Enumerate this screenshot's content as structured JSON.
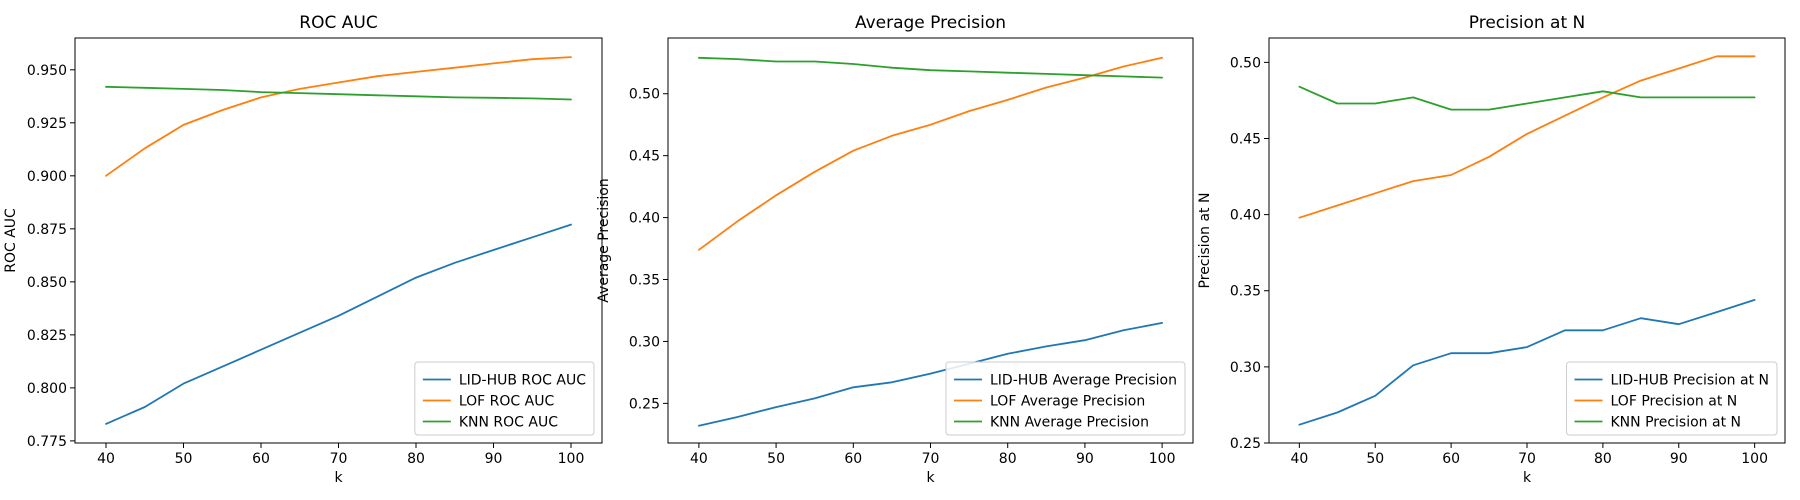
{
  "chart_data": [
    {
      "type": "line",
      "title": "ROC AUC",
      "xlabel": "k",
      "ylabel": "ROC AUC",
      "xlim": [
        36,
        104
      ],
      "ylim": [
        0.774,
        0.965
      ],
      "xticks": [
        40,
        50,
        60,
        70,
        80,
        90,
        100
      ],
      "yticks": [
        0.775,
        0.8,
        0.825,
        0.85,
        0.875,
        0.9,
        0.925,
        0.95
      ],
      "ytick_labels": [
        "0.775",
        "0.800",
        "0.825",
        "0.850",
        "0.875",
        "0.900",
        "0.925",
        "0.950"
      ],
      "x": [
        40,
        45,
        50,
        55,
        60,
        65,
        70,
        75,
        80,
        85,
        90,
        95,
        100
      ],
      "legend_position": "lower-right",
      "grid": false,
      "series": [
        {
          "name": "LID-HUB ROC AUC",
          "color": "#1f77b4",
          "values": [
            0.783,
            0.791,
            0.802,
            0.81,
            0.818,
            0.826,
            0.834,
            0.843,
            0.852,
            0.859,
            0.865,
            0.871,
            0.877
          ]
        },
        {
          "name": "LOF ROC AUC",
          "color": "#ff7f0e",
          "values": [
            0.9,
            0.913,
            0.924,
            0.931,
            0.937,
            0.941,
            0.944,
            0.947,
            0.949,
            0.951,
            0.953,
            0.955,
            0.956
          ]
        },
        {
          "name": "KNN ROC AUC",
          "color": "#2ca02c",
          "values": [
            0.942,
            0.9415,
            0.941,
            0.9405,
            0.9395,
            0.939,
            0.9385,
            0.938,
            0.9375,
            0.937,
            0.9368,
            0.9365,
            0.936
          ]
        }
      ]
    },
    {
      "type": "line",
      "title": "Average Precision",
      "xlabel": "k",
      "ylabel": "Average Precision",
      "xlim": [
        36,
        104
      ],
      "ylim": [
        0.218,
        0.545
      ],
      "xticks": [
        40,
        50,
        60,
        70,
        80,
        90,
        100
      ],
      "yticks": [
        0.25,
        0.3,
        0.35,
        0.4,
        0.45,
        0.5
      ],
      "ytick_labels": [
        "0.25",
        "0.30",
        "0.35",
        "0.40",
        "0.45",
        "0.50"
      ],
      "x": [
        40,
        45,
        50,
        55,
        60,
        65,
        70,
        75,
        80,
        85,
        90,
        95,
        100
      ],
      "legend_position": "lower-right",
      "grid": false,
      "series": [
        {
          "name": "LID-HUB Average Precision",
          "color": "#1f77b4",
          "values": [
            0.232,
            0.239,
            0.247,
            0.254,
            0.263,
            0.267,
            0.274,
            0.282,
            0.29,
            0.296,
            0.301,
            0.309,
            0.315
          ]
        },
        {
          "name": "LOF Average Precision",
          "color": "#ff7f0e",
          "values": [
            0.374,
            0.397,
            0.418,
            0.437,
            0.454,
            0.466,
            0.475,
            0.486,
            0.495,
            0.505,
            0.513,
            0.522,
            0.529
          ]
        },
        {
          "name": "KNN Average Precision",
          "color": "#2ca02c",
          "values": [
            0.529,
            0.528,
            0.526,
            0.526,
            0.524,
            0.521,
            0.519,
            0.518,
            0.517,
            0.516,
            0.515,
            0.514,
            0.513
          ]
        }
      ]
    },
    {
      "type": "line",
      "title": "Precision at N",
      "xlabel": "k",
      "ylabel": "Precision at N",
      "xlim": [
        36,
        104
      ],
      "ylim": [
        0.25,
        0.516
      ],
      "xticks": [
        40,
        50,
        60,
        70,
        80,
        90,
        100
      ],
      "yticks": [
        0.25,
        0.3,
        0.35,
        0.4,
        0.45,
        0.5
      ],
      "ytick_labels": [
        "0.25",
        "0.30",
        "0.35",
        "0.40",
        "0.45",
        "0.50"
      ],
      "x": [
        40,
        45,
        50,
        55,
        60,
        65,
        70,
        75,
        80,
        85,
        90,
        95,
        100
      ],
      "legend_position": "lower-right",
      "grid": false,
      "series": [
        {
          "name": "LID-HUB Precision at N",
          "color": "#1f77b4",
          "values": [
            0.262,
            0.27,
            0.281,
            0.301,
            0.309,
            0.309,
            0.313,
            0.324,
            0.324,
            0.332,
            0.328,
            0.336,
            0.344
          ]
        },
        {
          "name": "LOF Precision at N",
          "color": "#ff7f0e",
          "values": [
            0.398,
            0.406,
            0.414,
            0.422,
            0.426,
            0.438,
            0.453,
            0.465,
            0.477,
            0.488,
            0.496,
            0.504,
            0.504
          ]
        },
        {
          "name": "KNN Precision at N",
          "color": "#2ca02c",
          "values": [
            0.484,
            0.473,
            0.473,
            0.477,
            0.469,
            0.469,
            0.473,
            0.477,
            0.481,
            0.477,
            0.477,
            0.477,
            0.477
          ]
        }
      ]
    }
  ]
}
